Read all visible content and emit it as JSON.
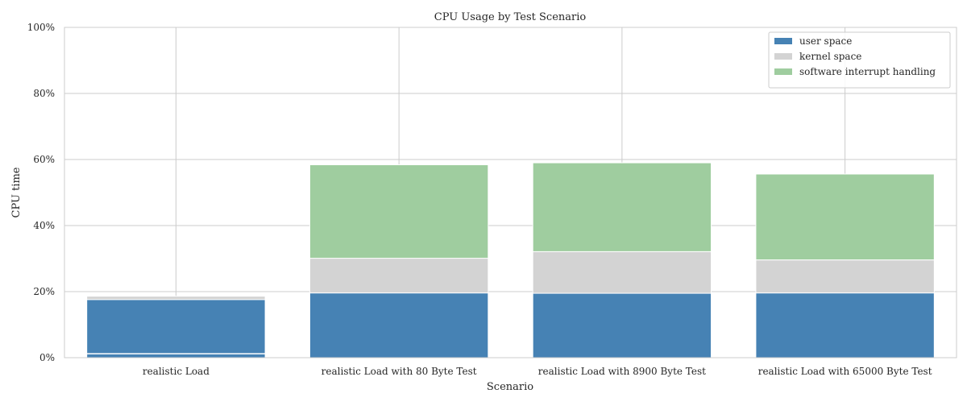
{
  "chart_data": {
    "type": "bar",
    "stacked": true,
    "title": "CPU Usage by Test Scenario",
    "xlabel": "Scenario",
    "ylabel": "CPU time",
    "ylim": [
      0,
      100
    ],
    "yticks": [
      0,
      20,
      40,
      60,
      80,
      100
    ],
    "ytick_labels": [
      "0%",
      "20%",
      "40%",
      "60%",
      "80%",
      "100%"
    ],
    "grid": true,
    "legend_position": "top-right",
    "categories": [
      "realistic Load",
      "realistic Load with 80 Byte Test",
      "realistic Load with 8900 Byte Test",
      "realistic Load with 65000 Byte Test"
    ],
    "series": [
      {
        "name": "user space",
        "color": "#4682b4",
        "values": [
          17.6,
          19.6,
          19.5,
          19.6
        ]
      },
      {
        "name": "kernel space",
        "color": "#d3d3d3",
        "values": [
          1.0,
          10.5,
          12.6,
          10.0
        ]
      },
      {
        "name": "software interrupt handling",
        "color": "#9fcd9f",
        "values": [
          0.0,
          28.3,
          26.9,
          26.0
        ]
      }
    ],
    "internal_divider_values": [
      1.2,
      0,
      0,
      0
    ]
  }
}
